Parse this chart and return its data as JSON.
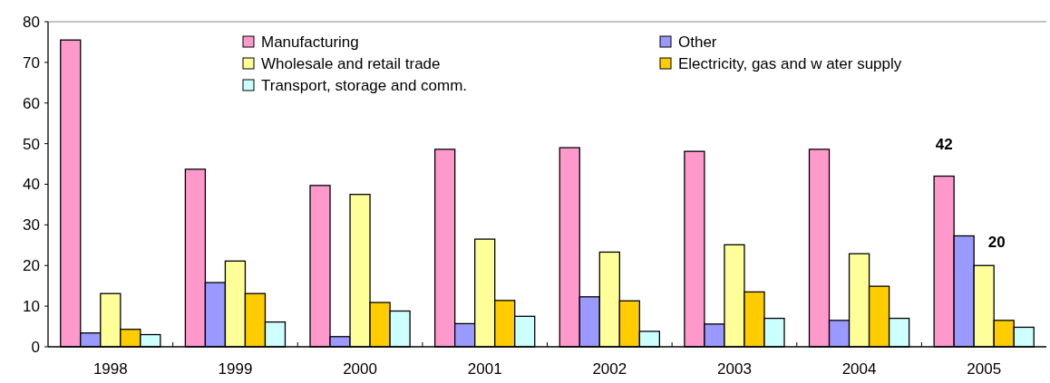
{
  "chart_data": {
    "type": "bar",
    "categories": [
      "1998",
      "1999",
      "2000",
      "2001",
      "2002",
      "2003",
      "2004",
      "2005"
    ],
    "series": [
      {
        "name": "Manufacturing",
        "color": "#ff99cc",
        "values": [
          75.5,
          43.7,
          39.7,
          48.6,
          49.0,
          48.1,
          48.6,
          42
        ],
        "value_labels": [
          null,
          null,
          null,
          null,
          null,
          null,
          null,
          "42"
        ]
      },
      {
        "name": "Other",
        "color": "#9999ff",
        "values": [
          3.4,
          15.8,
          2.5,
          5.7,
          12.3,
          5.6,
          6.5,
          27.3
        ]
      },
      {
        "name": "Wholesale and retail trade",
        "color": "#ffff99",
        "values": [
          13.1,
          21.1,
          37.5,
          26.5,
          23.3,
          25.1,
          22.9,
          20
        ],
        "value_labels": [
          null,
          null,
          null,
          null,
          null,
          null,
          null,
          "20"
        ]
      },
      {
        "name": "Electricity, gas and w ater supply",
        "color": "#ffcc00",
        "values": [
          4.3,
          13.1,
          10.9,
          11.4,
          11.3,
          13.5,
          14.9,
          6.5
        ]
      },
      {
        "name": "Transport, storage and comm.",
        "color": "#ccffff",
        "values": [
          3.0,
          6.1,
          8.8,
          7.5,
          3.8,
          7.0,
          7.0,
          4.8
        ]
      }
    ],
    "ylim": [
      0,
      80
    ],
    "yticks": [
      0,
      10,
      20,
      30,
      40,
      50,
      60,
      70,
      80
    ],
    "grid": false,
    "legend": "top"
  }
}
